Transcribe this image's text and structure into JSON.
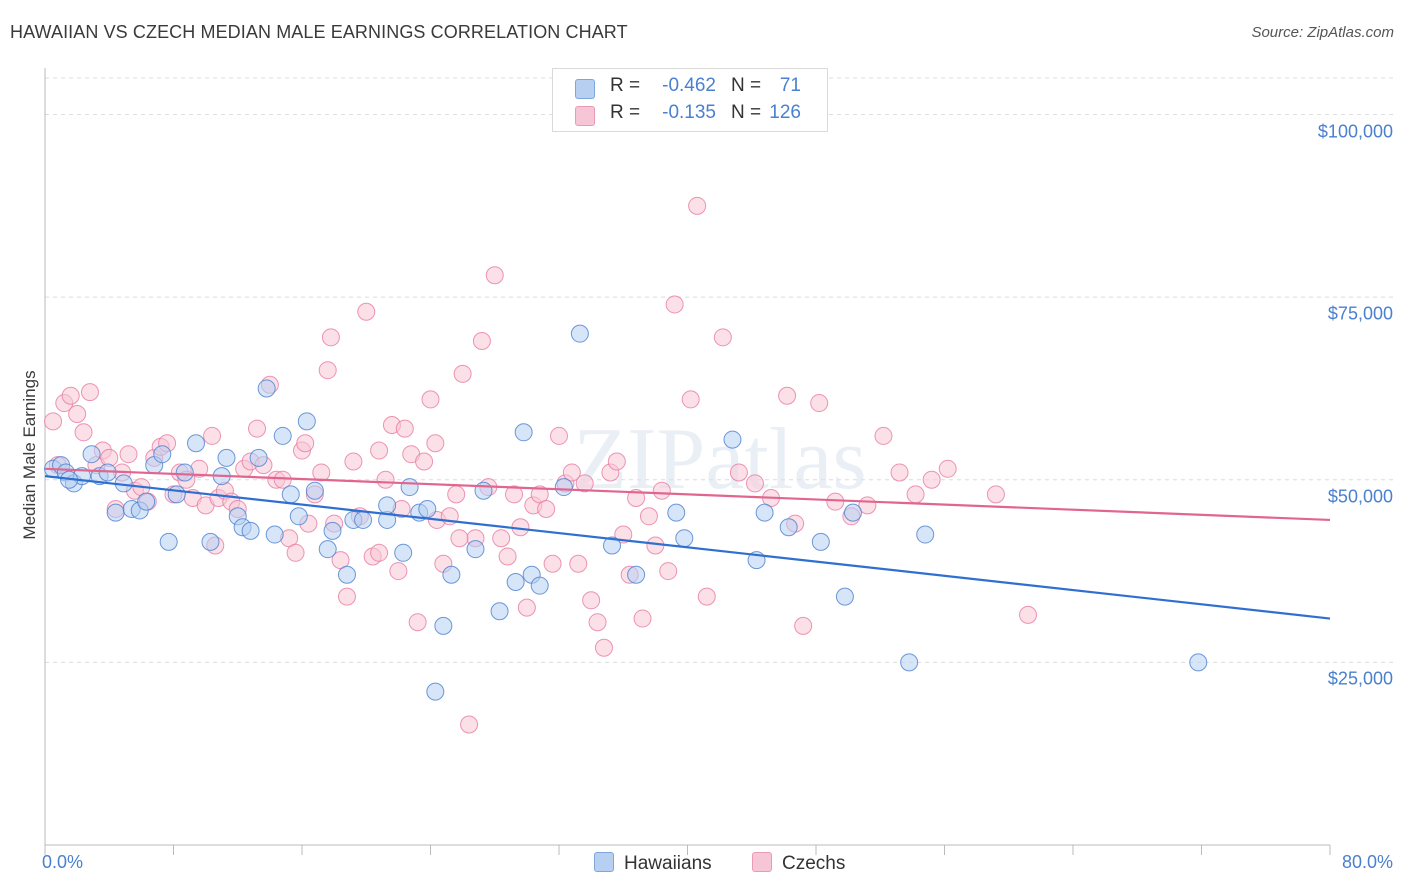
{
  "title": "HAWAIIAN VS CZECH MEDIAN MALE EARNINGS CORRELATION CHART",
  "source": "Source: ZipAtlas.com",
  "watermark": "ZIPatlas",
  "colors": {
    "blue": "#4a80cf",
    "blue_fill": "#b7d0f2",
    "blue_line": "#2f6fd0",
    "pink": "#e87ba3",
    "pink_fill": "#f7c6d6",
    "pink_line": "#e0668f",
    "grid": "#dcdcdc"
  },
  "legend": {
    "rows": [
      {
        "r_label": "R =",
        "r_value": "-0.462",
        "n_label": "N =",
        "n_value": "71"
      },
      {
        "r_label": "R =",
        "r_value": "-0.135",
        "n_label": "N =",
        "n_value": "126"
      }
    ],
    "bottom": [
      "Hawaiians",
      "Czechs"
    ]
  },
  "chart_data": {
    "type": "scatter",
    "title": "HAWAIIAN VS CZECH MEDIAN MALE EARNINGS CORRELATION CHART",
    "xlabel": "",
    "ylabel": "Median Male Earnings",
    "xlim": [
      0,
      80
    ],
    "ylim": [
      0,
      105000
    ],
    "x_tick_labels": [
      "0.0%",
      "80.0%"
    ],
    "y_ticks": [
      25000,
      50000,
      75000,
      100000
    ],
    "y_tick_labels": [
      "$25,000",
      "$50,000",
      "$75,000",
      "$100,000"
    ],
    "series": [
      {
        "name": "Hawaiians",
        "r": -0.462,
        "n": 71,
        "trend": {
          "x": [
            0,
            80
          ],
          "y": [
            50500,
            31000
          ]
        },
        "points": [
          [
            0.5,
            51500
          ],
          [
            1.0,
            52000
          ],
          [
            1.3,
            51000
          ],
          [
            1.8,
            49500
          ],
          [
            2.3,
            50500
          ],
          [
            2.9,
            53500
          ],
          [
            3.4,
            50500
          ],
          [
            3.9,
            51000
          ],
          [
            4.4,
            45500
          ],
          [
            4.9,
            49500
          ],
          [
            5.4,
            46000
          ],
          [
            5.9,
            45800
          ],
          [
            6.3,
            47000
          ],
          [
            6.8,
            52000
          ],
          [
            7.3,
            53500
          ],
          [
            7.7,
            41500
          ],
          [
            8.2,
            48000
          ],
          [
            8.7,
            51000
          ],
          [
            9.4,
            55000
          ],
          [
            10.3,
            41500
          ],
          [
            11.0,
            50500
          ],
          [
            11.3,
            53000
          ],
          [
            12.0,
            45000
          ],
          [
            12.3,
            43500
          ],
          [
            12.8,
            43000
          ],
          [
            13.3,
            53000
          ],
          [
            13.8,
            62500
          ],
          [
            14.3,
            42500
          ],
          [
            14.8,
            56000
          ],
          [
            15.3,
            48000
          ],
          [
            15.8,
            45000
          ],
          [
            16.3,
            58000
          ],
          [
            16.8,
            48500
          ],
          [
            17.6,
            40500
          ],
          [
            17.9,
            43000
          ],
          [
            18.8,
            37000
          ],
          [
            19.2,
            44500
          ],
          [
            19.8,
            44500
          ],
          [
            21.3,
            44500
          ],
          [
            21.3,
            46500
          ],
          [
            22.3,
            40000
          ],
          [
            22.7,
            49000
          ],
          [
            23.3,
            45500
          ],
          [
            23.8,
            46000
          ],
          [
            24.8,
            30000
          ],
          [
            25.3,
            37000
          ],
          [
            26.8,
            40500
          ],
          [
            27.3,
            48500
          ],
          [
            28.3,
            32000
          ],
          [
            29.3,
            36000
          ],
          [
            29.8,
            56500
          ],
          [
            30.3,
            37000
          ],
          [
            30.8,
            35500
          ],
          [
            32.3,
            49000
          ],
          [
            33.3,
            70000
          ],
          [
            35.3,
            41000
          ],
          [
            36.8,
            37000
          ],
          [
            39.3,
            45500
          ],
          [
            39.8,
            42000
          ],
          [
            42.8,
            55500
          ],
          [
            44.3,
            39000
          ],
          [
            44.8,
            45500
          ],
          [
            46.3,
            43500
          ],
          [
            48.3,
            41500
          ],
          [
            49.8,
            34000
          ],
          [
            50.3,
            45500
          ],
          [
            53.8,
            25000
          ],
          [
            54.8,
            42500
          ],
          [
            71.8,
            25000
          ],
          [
            24.3,
            21000
          ],
          [
            1.5,
            50000
          ]
        ]
      },
      {
        "name": "Czechs",
        "r": -0.135,
        "n": 126,
        "trend": {
          "x": [
            0,
            80
          ],
          "y": [
            51500,
            44500
          ]
        },
        "points": [
          [
            0.5,
            58000
          ],
          [
            0.8,
            52000
          ],
          [
            1.2,
            60500
          ],
          [
            1.6,
            61500
          ],
          [
            2.0,
            59000
          ],
          [
            2.4,
            56500
          ],
          [
            2.8,
            62000
          ],
          [
            3.2,
            52000
          ],
          [
            3.6,
            54000
          ],
          [
            4.0,
            53000
          ],
          [
            4.4,
            46000
          ],
          [
            4.8,
            51000
          ],
          [
            5.2,
            53500
          ],
          [
            5.6,
            48500
          ],
          [
            6.0,
            49000
          ],
          [
            6.4,
            47000
          ],
          [
            6.8,
            53000
          ],
          [
            7.2,
            54500
          ],
          [
            7.6,
            55000
          ],
          [
            8.0,
            48000
          ],
          [
            8.4,
            51000
          ],
          [
            8.8,
            50000
          ],
          [
            9.2,
            47500
          ],
          [
            9.6,
            51500
          ],
          [
            10.0,
            46500
          ],
          [
            10.4,
            56000
          ],
          [
            10.8,
            47500
          ],
          [
            11.2,
            48500
          ],
          [
            11.6,
            47000
          ],
          [
            12.0,
            46000
          ],
          [
            12.4,
            51500
          ],
          [
            12.8,
            52500
          ],
          [
            13.2,
            57000
          ],
          [
            13.6,
            52000
          ],
          [
            14.0,
            63000
          ],
          [
            14.4,
            50000
          ],
          [
            14.8,
            50000
          ],
          [
            15.2,
            42000
          ],
          [
            15.6,
            40000
          ],
          [
            16.0,
            54000
          ],
          [
            16.4,
            44000
          ],
          [
            16.8,
            48000
          ],
          [
            17.2,
            51000
          ],
          [
            17.6,
            65000
          ],
          [
            17.8,
            69500
          ],
          [
            18.0,
            44000
          ],
          [
            18.4,
            39000
          ],
          [
            18.8,
            34000
          ],
          [
            19.2,
            52500
          ],
          [
            19.6,
            45000
          ],
          [
            20.0,
            73000
          ],
          [
            20.4,
            39500
          ],
          [
            20.8,
            54000
          ],
          [
            21.2,
            50000
          ],
          [
            21.6,
            57500
          ],
          [
            22.0,
            37500
          ],
          [
            22.4,
            57000
          ],
          [
            22.8,
            53500
          ],
          [
            23.2,
            30500
          ],
          [
            23.6,
            52500
          ],
          [
            24.0,
            61000
          ],
          [
            24.4,
            44500
          ],
          [
            24.8,
            38500
          ],
          [
            25.2,
            45000
          ],
          [
            25.6,
            48000
          ],
          [
            26.0,
            64500
          ],
          [
            26.4,
            16500
          ],
          [
            26.8,
            42000
          ],
          [
            27.2,
            69000
          ],
          [
            27.6,
            49000
          ],
          [
            28.0,
            78000
          ],
          [
            28.4,
            42000
          ],
          [
            28.8,
            39500
          ],
          [
            29.2,
            48000
          ],
          [
            29.6,
            43500
          ],
          [
            30.0,
            32500
          ],
          [
            30.4,
            46500
          ],
          [
            30.8,
            48000
          ],
          [
            31.2,
            46000
          ],
          [
            31.6,
            38500
          ],
          [
            32.0,
            56000
          ],
          [
            32.4,
            49500
          ],
          [
            32.8,
            51000
          ],
          [
            33.2,
            38500
          ],
          [
            33.6,
            49500
          ],
          [
            34.0,
            33500
          ],
          [
            34.4,
            30500
          ],
          [
            34.8,
            27000
          ],
          [
            35.2,
            51000
          ],
          [
            35.6,
            52500
          ],
          [
            36.0,
            42500
          ],
          [
            36.4,
            37000
          ],
          [
            36.8,
            47500
          ],
          [
            37.2,
            31000
          ],
          [
            37.6,
            45000
          ],
          [
            38.0,
            41000
          ],
          [
            38.4,
            48500
          ],
          [
            38.8,
            37500
          ],
          [
            39.2,
            74000
          ],
          [
            40.2,
            61000
          ],
          [
            40.6,
            87500
          ],
          [
            41.2,
            34000
          ],
          [
            42.2,
            69500
          ],
          [
            43.2,
            51000
          ],
          [
            44.2,
            49500
          ],
          [
            45.2,
            47500
          ],
          [
            46.2,
            61500
          ],
          [
            47.2,
            30000
          ],
          [
            48.2,
            60500
          ],
          [
            49.2,
            47000
          ],
          [
            50.2,
            45000
          ],
          [
            51.2,
            46500
          ],
          [
            52.2,
            56000
          ],
          [
            53.2,
            51000
          ],
          [
            54.2,
            48000
          ],
          [
            55.2,
            50000
          ],
          [
            56.2,
            51500
          ],
          [
            59.2,
            48000
          ],
          [
            61.2,
            31500
          ],
          [
            46.7,
            44000
          ],
          [
            22.2,
            46000
          ],
          [
            20.8,
            40000
          ],
          [
            24.3,
            55000
          ],
          [
            25.8,
            42000
          ],
          [
            16.2,
            55000
          ],
          [
            10.6,
            41000
          ]
        ]
      }
    ]
  }
}
